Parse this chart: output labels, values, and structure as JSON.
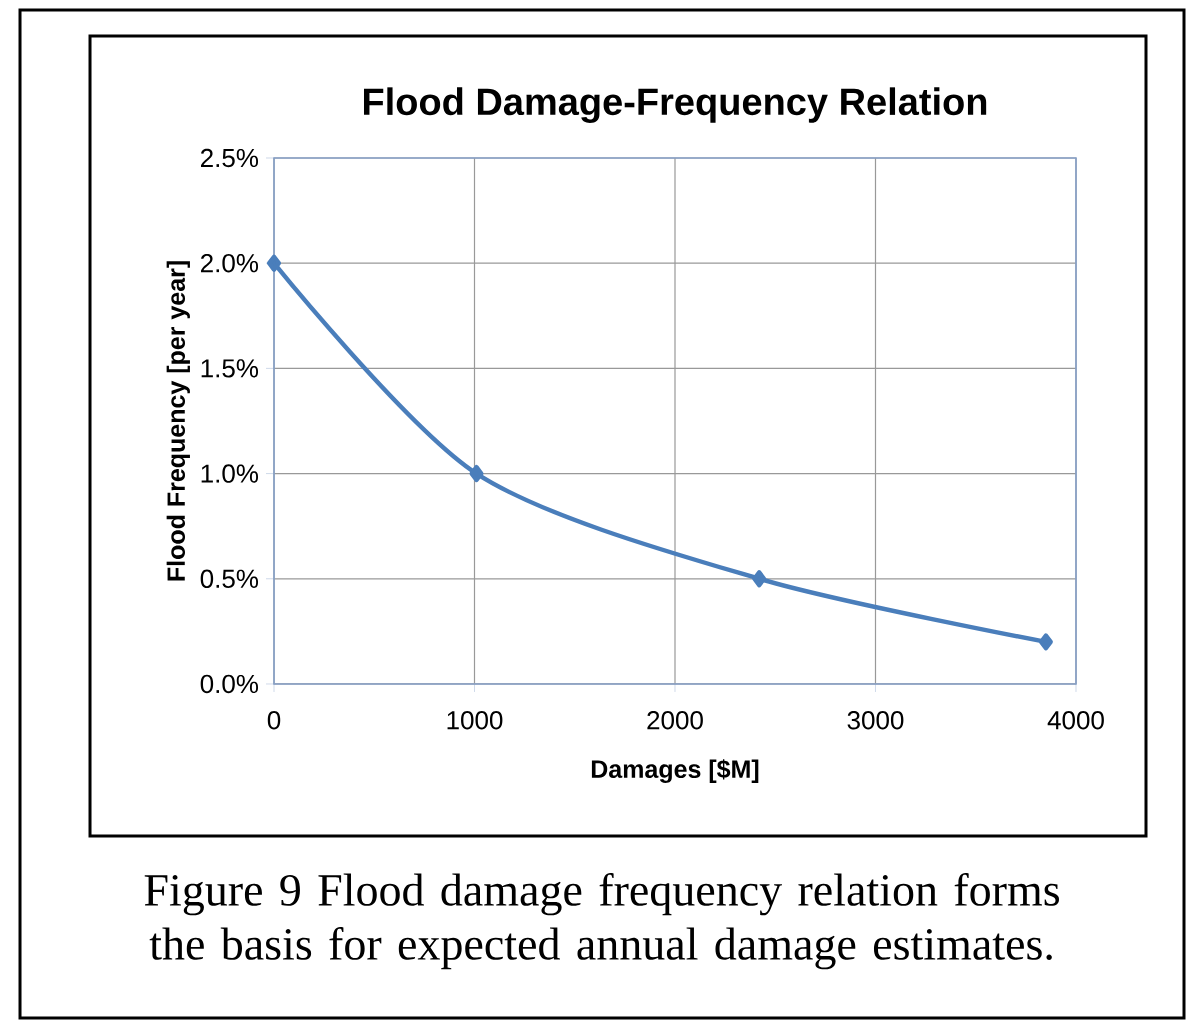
{
  "chart_data": {
    "type": "line",
    "title": "Flood Damage-Frequency Relation",
    "xlabel": "Damages [$M]",
    "ylabel": "Flood Frequency [per year]",
    "x": [
      0,
      1010,
      2420,
      3850
    ],
    "series": [
      {
        "color": "#4a7ebb",
        "values": [
          2.0,
          1.0,
          0.5,
          0.2
        ]
      }
    ],
    "xlim": [
      0,
      4000
    ],
    "xticks": [
      0,
      1000,
      2000,
      3000,
      4000
    ],
    "ylim": [
      0,
      2.5
    ],
    "yticks": [
      {
        "value": 0,
        "label": "0.0%"
      },
      {
        "value": 0.5,
        "label": "0.5%"
      },
      {
        "value": 1,
        "label": "1.0%"
      },
      {
        "value": 1.5,
        "label": "1.5%"
      },
      {
        "value": 2,
        "label": "2.0%"
      },
      {
        "value": 2.5,
        "label": "2.5%"
      }
    ],
    "grid": true,
    "marker": "diamond",
    "line_style": "solid",
    "annotations": [
      "Figure 9 Flood damage frequency relation forms the basis for expected annual damage estimates."
    ]
  }
}
